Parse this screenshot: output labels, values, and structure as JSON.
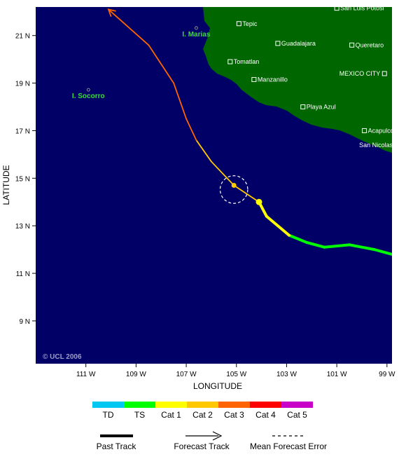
{
  "map": {
    "lon_min": -113,
    "lon_max": -98.8,
    "lat_min": 7.2,
    "lat_max": 22.2,
    "ocean_color": "#000066",
    "land_color": "#006600",
    "x_tick_labels": [
      "111 W",
      "109 W",
      "107 W",
      "105 W",
      "103 W",
      "101 W",
      "99 W"
    ],
    "x_tick_values": [
      -111,
      -109,
      -107,
      -105,
      -103,
      -101,
      -99
    ],
    "y_tick_labels": [
      "21 N",
      "19 N",
      "17 N",
      "15 N",
      "13 N",
      "11 N",
      "9 N"
    ],
    "y_tick_values": [
      21,
      19,
      17,
      15,
      13,
      11,
      9
    ],
    "xlabel": "LONGITUDE",
    "ylabel": "LATITUDE",
    "copyright": "© UCL 2006",
    "islands": [
      {
        "label": "I. Marias",
        "lon": -106.6,
        "lat": 21.2
      },
      {
        "label": "I. Socorro",
        "lon": -110.9,
        "lat": 18.6
      }
    ],
    "cities": [
      {
        "name": "San Luis Potosi",
        "lon": -101.0,
        "lat": 22.15
      },
      {
        "name": "Tepic",
        "lon": -104.9,
        "lat": 21.5
      },
      {
        "name": "Guadalajara",
        "lon": -103.35,
        "lat": 20.67
      },
      {
        "name": "Queretaro",
        "lon": -100.4,
        "lat": 20.6
      },
      {
        "name": "Tomatlan",
        "lon": -105.25,
        "lat": 19.9
      },
      {
        "name": "MEXICO CITY",
        "lon": -99.1,
        "lat": 19.4,
        "label_left": true
      },
      {
        "name": "Manzanillo",
        "lon": -104.3,
        "lat": 19.15
      },
      {
        "name": "Playa Azul",
        "lon": -102.35,
        "lat": 18.0
      },
      {
        "name": "Acapulco",
        "lon": -99.9,
        "lat": 17.0
      },
      {
        "name": "San Nicolas",
        "lon": -98.6,
        "lat": 16.4,
        "label_left": true
      }
    ]
  },
  "chart_data": {
    "type": "line",
    "past_track": [
      {
        "lon": -98.8,
        "lat": 11.8,
        "cat": "TD"
      },
      {
        "lon": -99.5,
        "lat": 12.0,
        "cat": "TS"
      },
      {
        "lon": -100.5,
        "lat": 12.2,
        "cat": "TS"
      },
      {
        "lon": -101.5,
        "lat": 12.1,
        "cat": "TS"
      },
      {
        "lon": -102.2,
        "lat": 12.3,
        "cat": "TS"
      },
      {
        "lon": -102.9,
        "lat": 12.6,
        "cat": "TS"
      },
      {
        "lon": -103.8,
        "lat": 13.4,
        "cat": "Cat 1"
      },
      {
        "lon": -104.1,
        "lat": 14.0,
        "cat": "Cat 1"
      }
    ],
    "forecast_track": [
      {
        "lon": -104.1,
        "lat": 14.0,
        "cat": "Cat 2"
      },
      {
        "lon": -105.1,
        "lat": 14.7,
        "cat": "Cat 2"
      },
      {
        "lon": -106.0,
        "lat": 15.7,
        "cat": "Cat 2"
      },
      {
        "lon": -106.6,
        "lat": 16.6,
        "cat": "Cat 2"
      },
      {
        "lon": -107.0,
        "lat": 17.5,
        "cat": "Cat 3"
      },
      {
        "lon": -107.5,
        "lat": 19.0,
        "cat": "Cat 3"
      },
      {
        "lon": -108.5,
        "lat": 20.6,
        "cat": "Cat 3"
      },
      {
        "lon": -110.1,
        "lat": 22.1,
        "cat": "Cat 3"
      }
    ],
    "current_position": {
      "lon": -104.1,
      "lat": 14.0
    },
    "forecast_point": {
      "lon": -105.1,
      "lat": 14.7
    },
    "error_circle_radius_deg": 0.55
  },
  "legend": {
    "categories": [
      {
        "label": "TD",
        "color": "#00c8f0"
      },
      {
        "label": "TS",
        "color": "#00ff00"
      },
      {
        "label": "Cat 1",
        "color": "#ffff00"
      },
      {
        "label": "Cat 2",
        "color": "#ffc800"
      },
      {
        "label": "Cat 3",
        "color": "#ff6400"
      },
      {
        "label": "Cat 4",
        "color": "#ff0000"
      },
      {
        "label": "Cat 5",
        "color": "#c800c8"
      }
    ],
    "past_track_label": "Past Track",
    "forecast_track_label": "Forecast Track",
    "error_label": "Mean Forecast Error"
  }
}
